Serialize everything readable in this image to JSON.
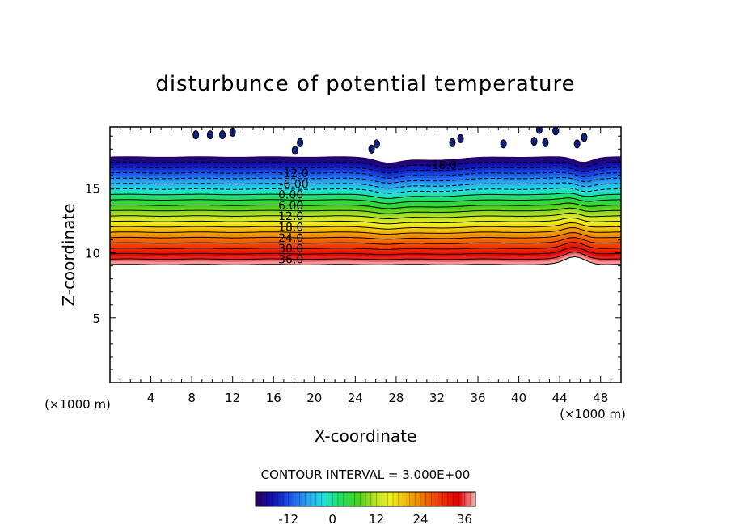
{
  "chart_data": {
    "type": "contour",
    "title": "disturbunce of potential temperature",
    "xlabel": "X-coordinate",
    "ylabel": "Z-coordinate",
    "x_unit": "(×1000 m)",
    "y_unit": "(×1000 m)",
    "xlim": [
      0,
      50
    ],
    "ylim": [
      0,
      19.7
    ],
    "x_ticks": [
      "4",
      "8",
      "12",
      "16",
      "20",
      "24",
      "28",
      "32",
      "36",
      "40",
      "44",
      "48"
    ],
    "y_ticks": [
      "5",
      "10",
      "15"
    ],
    "contour_interval_text": "CONTOUR INTERVAL = 3.000E+00",
    "contour_labels": [
      "-18.0",
      "-12.0",
      "-6.00",
      "0.00",
      "6.00",
      "12.0",
      "18.0",
      "24.0",
      "30.0",
      "36.0"
    ],
    "field_range": [
      -21,
      39
    ],
    "data_z_range": [
      9.1,
      17.4
    ],
    "colorbar_ticks": [
      "-12",
      "0",
      "12",
      "24",
      "36"
    ],
    "colorbar_range": [
      -21,
      39
    ],
    "colormap": [
      "#2a005a",
      "#1010b0",
      "#1a50e8",
      "#2aa0f0",
      "#20e0e0",
      "#20e060",
      "#40d020",
      "#b0e020",
      "#f0f020",
      "#f0b000",
      "#f07000",
      "#f03000",
      "#e00000",
      "#f4b8b8"
    ]
  }
}
